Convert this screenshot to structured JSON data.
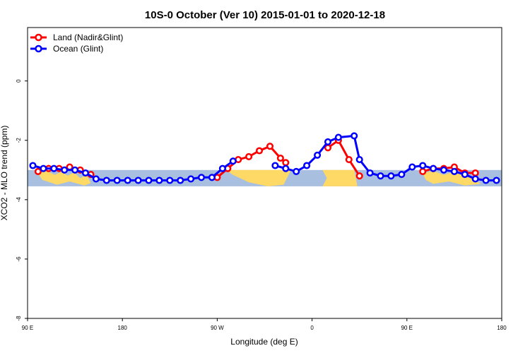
{
  "chart_data": {
    "type": "line",
    "title": "10S-0 October (Ver 10)   2015-01-01 to 2020-12-18",
    "xlabel": "Longitude (deg E)",
    "ylabel": "XCO2 - MLO trend (ppm)",
    "x_tick_labels": [
      "90 E",
      "180",
      "90 W",
      "0",
      "90 E",
      "180"
    ],
    "x_ticks": [
      90,
      180,
      270,
      360,
      450,
      540
    ],
    "xlim": [
      90,
      540
    ],
    "y_tick_labels": [
      "0",
      "-2",
      "-4",
      "-6",
      "-8"
    ],
    "y_ticks": [
      0,
      -2,
      -4,
      -6,
      -8
    ],
    "ylim": [
      -8,
      1.8
    ],
    "band": {
      "y_from": -3.0,
      "y_to": -3.55
    },
    "grid": false,
    "legend_position": "top-left",
    "series": [
      {
        "name": "Land (Nadir&Glint)",
        "color": "#ff0000",
        "segments": [
          [
            [
              100,
              -3.05
            ],
            [
              110,
              -2.95
            ],
            [
              120,
              -2.95
            ],
            [
              130,
              -2.9
            ],
            [
              140,
              -3.0
            ],
            [
              150,
              -3.15
            ]
          ],
          [
            [
              270,
              -3.25
            ],
            [
              280,
              -2.95
            ],
            [
              290,
              -2.65
            ],
            [
              300,
              -2.55
            ],
            [
              310,
              -2.35
            ],
            [
              320,
              -2.2
            ],
            [
              330,
              -2.6
            ],
            [
              335,
              -2.75
            ]
          ],
          [
            [
              375,
              -2.25
            ],
            [
              385,
              -2.0
            ],
            [
              395,
              -2.65
            ],
            [
              405,
              -3.2
            ]
          ],
          [
            [
              465,
              -3.05
            ],
            [
              475,
              -2.95
            ],
            [
              485,
              -2.95
            ],
            [
              495,
              -2.9
            ],
            [
              505,
              -3.1
            ],
            [
              515,
              -3.1
            ]
          ]
        ]
      },
      {
        "name": "Ocean (Glint)",
        "color": "#0000ff",
        "segments": [
          [
            [
              95,
              -2.85
            ],
            [
              105,
              -2.95
            ],
            [
              115,
              -2.95
            ],
            [
              125,
              -3.0
            ],
            [
              135,
              -3.0
            ],
            [
              145,
              -3.1
            ],
            [
              155,
              -3.3
            ],
            [
              165,
              -3.35
            ],
            [
              175,
              -3.35
            ],
            [
              185,
              -3.35
            ],
            [
              195,
              -3.35
            ],
            [
              205,
              -3.35
            ],
            [
              215,
              -3.35
            ],
            [
              225,
              -3.35
            ],
            [
              235,
              -3.35
            ],
            [
              245,
              -3.3
            ],
            [
              255,
              -3.25
            ],
            [
              265,
              -3.25
            ],
            [
              275,
              -2.95
            ],
            [
              285,
              -2.7
            ]
          ],
          [
            [
              325,
              -2.85
            ],
            [
              335,
              -2.95
            ],
            [
              345,
              -3.05
            ],
            [
              355,
              -2.85
            ],
            [
              365,
              -2.5
            ],
            [
              375,
              -2.05
            ],
            [
              385,
              -1.9
            ],
            [
              400,
              -1.85
            ],
            [
              405,
              -2.65
            ],
            [
              415,
              -3.1
            ],
            [
              425,
              -3.2
            ],
            [
              435,
              -3.2
            ],
            [
              445,
              -3.15
            ],
            [
              455,
              -2.9
            ],
            [
              465,
              -2.85
            ],
            [
              475,
              -2.95
            ],
            [
              485,
              -3.0
            ],
            [
              495,
              -3.05
            ],
            [
              505,
              -3.15
            ],
            [
              515,
              -3.3
            ],
            [
              525,
              -3.35
            ],
            [
              535,
              -3.35
            ]
          ]
        ]
      }
    ]
  }
}
